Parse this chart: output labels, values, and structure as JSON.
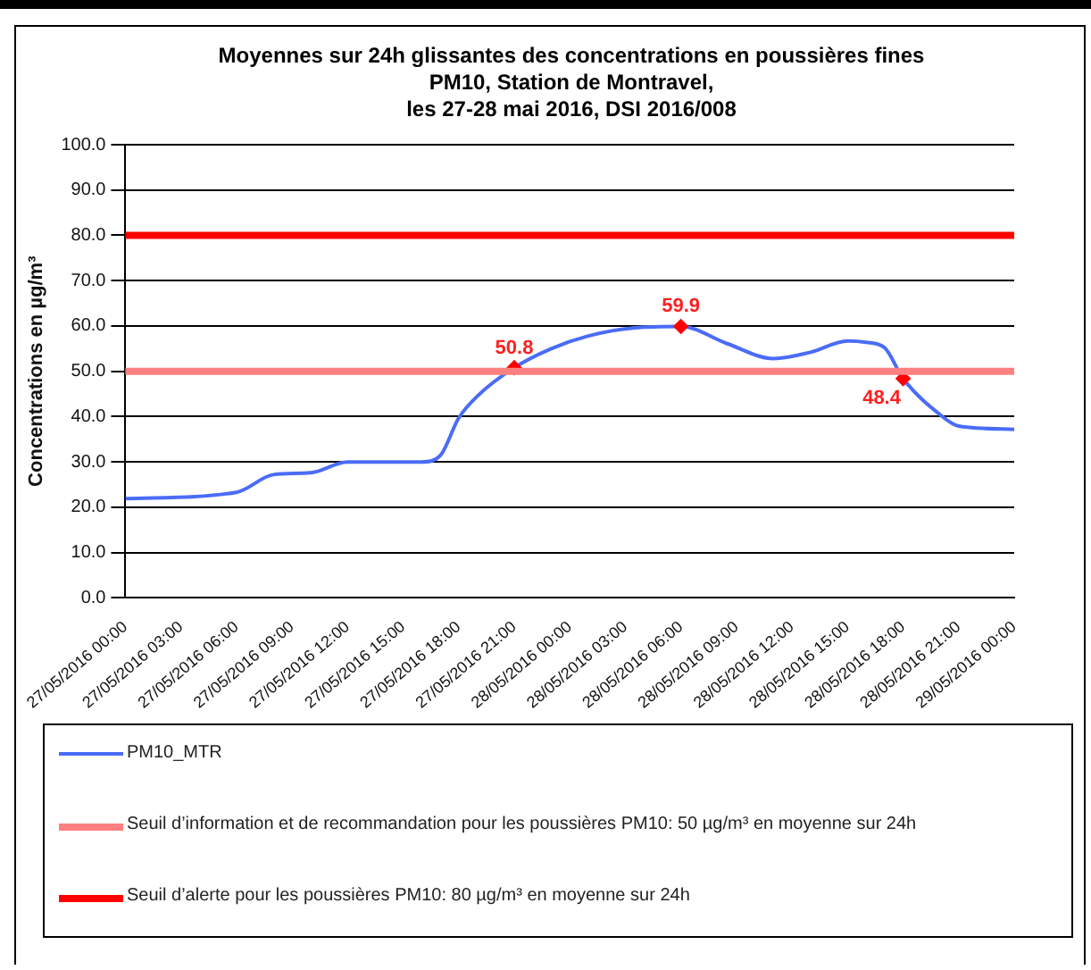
{
  "chart_data": {
    "type": "line",
    "title": "Moyennes sur 24h glissantes des concentrations en poussières fines\nPM10, Station de Montravel,\nles 27-28 mai 2016, DSI 2016/008",
    "ylabel": "Concentrations en µg/m³",
    "x": [
      "2016-05-27T00:00",
      "2016-05-27T06:00",
      "2016-05-27T08:00",
      "2016-05-27T10:00",
      "2016-05-27T12:00",
      "2016-05-27T16:00",
      "2016-05-27T17:00",
      "2016-05-27T18:00",
      "2016-05-27T19:00",
      "2016-05-27T21:00",
      "2016-05-27T23:00",
      "2016-05-28T01:00",
      "2016-05-28T03:30",
      "2016-05-28T06:00",
      "2016-05-28T08:30",
      "2016-05-28T11:00",
      "2016-05-28T13:00",
      "2016-05-28T15:00",
      "2016-05-28T16:00",
      "2016-05-28T17:00",
      "2016-05-28T18:00",
      "2016-05-28T20:00",
      "2016-05-28T21:00",
      "2016-05-29T00:00"
    ],
    "series": [
      {
        "name": "PM10_MTR",
        "color": "#4a6cf7",
        "values": [
          21.9,
          23.3,
          27.2,
          27.6,
          30,
          30,
          31.4,
          39.7,
          44.5,
          50.8,
          55,
          57.8,
          59.6,
          59.9,
          56.1,
          52.8,
          54.2,
          56.7,
          56.4,
          55.2,
          48.4,
          40.4,
          37.9,
          37.2
        ],
        "value_labels": [
          null,
          null,
          null,
          null,
          null,
          null,
          null,
          null,
          null,
          "50.8",
          null,
          null,
          null,
          "59.9",
          null,
          null,
          null,
          null,
          null,
          null,
          "48.4",
          null,
          null,
          null
        ]
      }
    ],
    "xlim": [
      "2016-05-27T00:00",
      "2016-05-29T00:00"
    ],
    "xticks": [
      {
        "value": "2016-05-27T00:00",
        "label": "27/05/2016 00:00"
      },
      {
        "value": "2016-05-27T03:00",
        "label": "27/05/2016 03:00"
      },
      {
        "value": "2016-05-27T06:00",
        "label": "27/05/2016 06:00"
      },
      {
        "value": "2016-05-27T09:00",
        "label": "27/05/2016 09:00"
      },
      {
        "value": "2016-05-27T12:00",
        "label": "27/05/2016 12:00"
      },
      {
        "value": "2016-05-27T15:00",
        "label": "27/05/2016 15:00"
      },
      {
        "value": "2016-05-27T18:00",
        "label": "27/05/2016 18:00"
      },
      {
        "value": "2016-05-27T21:00",
        "label": "27/05/2016 21:00"
      },
      {
        "value": "2016-05-28T00:00",
        "label": "28/05/2016 00:00"
      },
      {
        "value": "2016-05-28T03:00",
        "label": "28/05/2016 03:00"
      },
      {
        "value": "2016-05-28T06:00",
        "label": "28/05/2016 06:00"
      },
      {
        "value": "2016-05-28T09:00",
        "label": "28/05/2016 09:00"
      },
      {
        "value": "2016-05-28T12:00",
        "label": "28/05/2016 12:00"
      },
      {
        "value": "2016-05-28T15:00",
        "label": "28/05/2016 15:00"
      },
      {
        "value": "2016-05-28T18:00",
        "label": "28/05/2016 18:00"
      },
      {
        "value": "2016-05-28T21:00",
        "label": "28/05/2016 21:00"
      },
      {
        "value": "2016-05-29T00:00",
        "label": "29/05/2016 00:00"
      }
    ],
    "ylim": [
      0,
      100
    ],
    "yticks": [
      {
        "value": 0,
        "label": "0.0"
      },
      {
        "value": 10,
        "label": "10.0"
      },
      {
        "value": 20,
        "label": "20.0"
      },
      {
        "value": 30,
        "label": "30.0"
      },
      {
        "value": 40,
        "label": "40.0"
      },
      {
        "value": 50,
        "label": "50.0"
      },
      {
        "value": 60,
        "label": "60.0"
      },
      {
        "value": 70,
        "label": "70.0"
      },
      {
        "value": 80,
        "label": "80.0"
      },
      {
        "value": 90,
        "label": "90.0"
      },
      {
        "value": 100,
        "label": "100.0"
      }
    ],
    "ref_lines": [
      {
        "axis": "y",
        "value": 50,
        "label": "Seuil d’information et de recommandation pour les poussières PM10: 50 µg/m³ en moyenne sur 24h",
        "color": "#ff8080"
      },
      {
        "axis": "y",
        "value": 80,
        "label": "Seuil d’alerte pour les poussières PM10: 80 µg/m³ en moyenne sur 24h",
        "color": "#ff0000"
      }
    ],
    "grid": "y",
    "legend": "bottom",
    "line_style": "solid"
  }
}
